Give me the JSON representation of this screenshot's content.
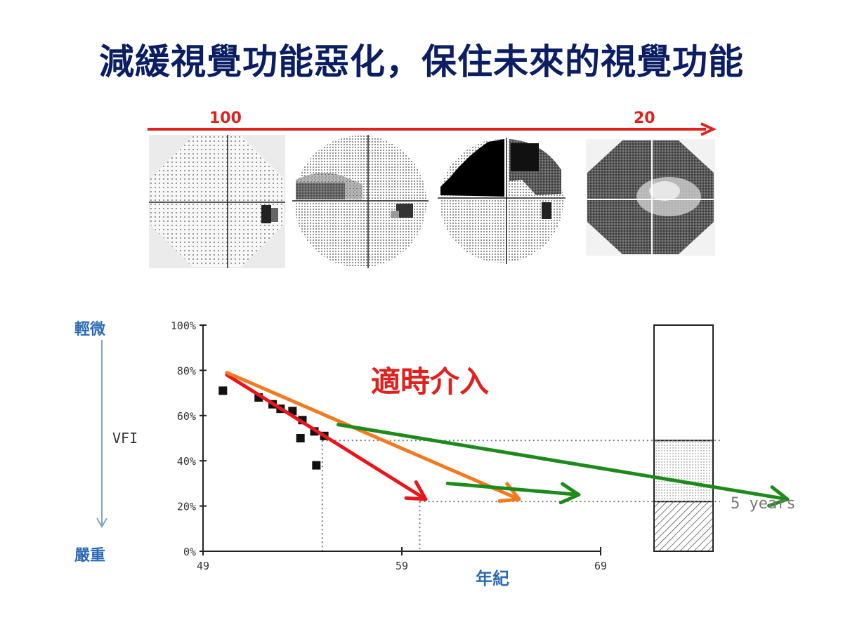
{
  "header": {
    "title": "減緩視覺功能惡化，保住未來的視覺功能"
  },
  "severity_scale": {
    "start_label": "100",
    "end_label": "20",
    "arrow_color": "#e0211d"
  },
  "side_axis": {
    "top_label": "輕微",
    "bottom_label": "嚴重",
    "arrow_color": "#7fa3cf"
  },
  "annotation": {
    "text": "適時介入",
    "color": "#e0211d"
  },
  "colors": {
    "title": "#0b1e63",
    "axis_label": "#2d6bb5",
    "red_arrow": "#e8161a",
    "orange_arrow": "#f47a1f",
    "green_arrow": "#1f8a1c"
  },
  "icons": [
    "visual-field-map-icon"
  ],
  "chart_data": {
    "type": "scatter",
    "title": "",
    "ylabel": "VFI",
    "xlabel": "年紀",
    "xlim": [
      49,
      69
    ],
    "ylim": [
      0,
      100
    ],
    "x_ticks": [
      "49",
      "59",
      "69"
    ],
    "y_ticks": [
      "0%",
      "20%",
      "40%",
      "60%",
      "80%",
      "100%"
    ],
    "points": [
      {
        "x": 50.0,
        "y": 71
      },
      {
        "x": 51.8,
        "y": 68
      },
      {
        "x": 52.5,
        "y": 65
      },
      {
        "x": 52.9,
        "y": 63
      },
      {
        "x": 53.5,
        "y": 62
      },
      {
        "x": 54.0,
        "y": 58
      },
      {
        "x": 53.9,
        "y": 50
      },
      {
        "x": 54.6,
        "y": 53
      },
      {
        "x": 55.1,
        "y": 51
      },
      {
        "x": 54.7,
        "y": 38
      }
    ],
    "trend_lines": [
      {
        "color": "red",
        "from": [
          50.2,
          78
        ],
        "to": [
          60.2,
          23
        ]
      },
      {
        "color": "orange",
        "from": [
          50.2,
          79
        ],
        "to": [
          64.9,
          23
        ]
      },
      {
        "color": "green",
        "from": [
          55.8,
          56
        ],
        "to": [
          78.4,
          23
        ]
      },
      {
        "color": "green",
        "from": [
          61.3,
          30
        ],
        "to": [
          67.9,
          25
        ]
      }
    ],
    "reference_lines": [
      {
        "label": "",
        "y": 49,
        "x_from": 55.0,
        "x_to": 75.0
      },
      {
        "label": "",
        "y": 22,
        "x_from": 59.9,
        "x_to": 75.0
      }
    ],
    "stacked_bar": {
      "segments": [
        {
          "from": 0,
          "to": 22,
          "pattern": "hatched"
        },
        {
          "from": 22,
          "to": 49,
          "pattern": "dotted"
        },
        {
          "from": 49,
          "to": 100,
          "pattern": "empty"
        }
      ],
      "label": "5 years"
    }
  }
}
